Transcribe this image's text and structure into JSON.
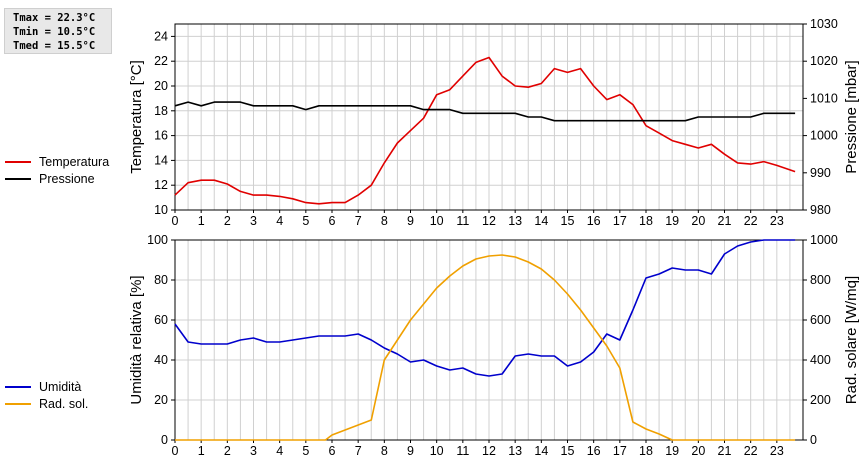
{
  "stats": {
    "tmax": "Tmax = 22.3°C",
    "tmin": "Tmin = 10.5°C",
    "tmed": "Tmed = 15.5°C"
  },
  "colors": {
    "temperature": "#e00000",
    "pressure": "#000000",
    "humidity": "#0000cc",
    "solar": "#f0a000",
    "grid": "#d0d0d0"
  },
  "chart_data": [
    {
      "type": "line",
      "ylabel": "Temperatura [°C]",
      "y2label": "Pressione [mbar]",
      "ylim": [
        10,
        25
      ],
      "yticks": [
        10,
        12,
        14,
        16,
        18,
        20,
        22,
        24
      ],
      "y2lim": [
        980,
        1030
      ],
      "y2ticks": [
        980,
        990,
        1000,
        1010,
        1020,
        1030
      ],
      "xlim": [
        0,
        24
      ],
      "xticks": [
        "0",
        "1",
        "2",
        "3",
        "4",
        "5",
        "6",
        "7",
        "8",
        "9",
        "10",
        "11",
        "12",
        "13",
        "14",
        "15",
        "16",
        "17",
        "18",
        "19",
        "20",
        "21",
        "22",
        "23"
      ],
      "grid": true,
      "legend_position": "left",
      "series": [
        {
          "name": "Temperatura",
          "axis": "left",
          "x": [
            0,
            0.5,
            1,
            1.5,
            2,
            2.5,
            3,
            3.5,
            4,
            4.5,
            5,
            5.5,
            6,
            6.5,
            7,
            7.5,
            8,
            8.5,
            9,
            9.5,
            10,
            10.5,
            11,
            11.5,
            12,
            12.5,
            13,
            13.5,
            14,
            14.5,
            15,
            15.5,
            16,
            16.5,
            17,
            17.5,
            18,
            18.5,
            19,
            19.5,
            20,
            20.5,
            21,
            21.5,
            22,
            22.5,
            23,
            23.7
          ],
          "values": [
            11.2,
            12.2,
            12.4,
            12.4,
            12.1,
            11.5,
            11.2,
            11.2,
            11.1,
            10.9,
            10.6,
            10.5,
            10.6,
            10.6,
            11.2,
            12.0,
            13.8,
            15.4,
            16.4,
            17.4,
            19.3,
            19.7,
            20.8,
            21.9,
            22.3,
            20.8,
            20.0,
            19.9,
            20.2,
            21.4,
            21.1,
            21.4,
            20.0,
            18.9,
            19.3,
            18.5,
            16.8,
            16.2,
            15.6,
            15.3,
            15.0,
            15.3,
            14.5,
            13.8,
            13.7,
            13.9,
            13.6,
            13.1
          ]
        },
        {
          "name": "Pressione",
          "axis": "right",
          "x": [
            0,
            0.5,
            1,
            1.5,
            2,
            2.5,
            3,
            3.5,
            4,
            4.5,
            5,
            5.5,
            6,
            6.5,
            7,
            7.5,
            8,
            8.5,
            9,
            9.5,
            10,
            10.5,
            11,
            11.5,
            12,
            12.5,
            13,
            13.5,
            14,
            14.5,
            15,
            15.5,
            16,
            16.5,
            17,
            17.5,
            18,
            18.5,
            19,
            19.5,
            20,
            20.5,
            21,
            21.5,
            22,
            22.5,
            23,
            23.7
          ],
          "values": [
            1008,
            1009,
            1008,
            1009,
            1009,
            1009,
            1008,
            1008,
            1008,
            1008,
            1007,
            1008,
            1008,
            1008,
            1008,
            1008,
            1008,
            1008,
            1008,
            1007,
            1007,
            1007,
            1006,
            1006,
            1006,
            1006,
            1006,
            1005,
            1005,
            1004,
            1004,
            1004,
            1004,
            1004,
            1004,
            1004,
            1004,
            1004,
            1004,
            1004,
            1005,
            1005,
            1005,
            1005,
            1005,
            1006,
            1006,
            1006
          ]
        }
      ]
    },
    {
      "type": "line",
      "ylabel": "Umidità relativa [%]",
      "y2label": "Rad. solare [W/mq]",
      "ylim": [
        0,
        100
      ],
      "yticks": [
        0,
        20,
        40,
        60,
        80,
        100
      ],
      "y2lim": [
        0,
        1000
      ],
      "y2ticks": [
        0,
        200,
        400,
        600,
        800,
        1000
      ],
      "xlim": [
        0,
        24
      ],
      "xticks": [
        "0",
        "1",
        "2",
        "3",
        "4",
        "5",
        "6",
        "7",
        "8",
        "9",
        "10",
        "11",
        "12",
        "13",
        "14",
        "15",
        "16",
        "17",
        "18",
        "19",
        "20",
        "21",
        "22",
        "23"
      ],
      "grid": true,
      "legend_position": "left",
      "series": [
        {
          "name": "Umidità",
          "axis": "left",
          "x": [
            0,
            0.5,
            1,
            1.5,
            2,
            2.5,
            3,
            3.5,
            4,
            4.5,
            5,
            5.5,
            6,
            6.5,
            7,
            7.5,
            8,
            8.5,
            9,
            9.5,
            10,
            10.5,
            11,
            11.5,
            12,
            12.5,
            13,
            13.5,
            14,
            14.5,
            15,
            15.5,
            16,
            16.5,
            17,
            17.5,
            18,
            18.5,
            19,
            19.5,
            20,
            20.5,
            21,
            21.5,
            22,
            22.5,
            23,
            23.7
          ],
          "values": [
            58,
            49,
            48,
            48,
            48,
            50,
            51,
            49,
            49,
            50,
            51,
            52,
            52,
            52,
            53,
            50,
            46,
            43,
            39,
            40,
            37,
            35,
            36,
            33,
            32,
            33,
            42,
            43,
            42,
            42,
            37,
            39,
            44,
            53,
            50,
            65,
            81,
            83,
            86,
            85,
            85,
            83,
            93,
            97,
            99,
            100,
            100,
            100
          ]
        },
        {
          "name": "Rad. sol.",
          "axis": "right",
          "x": [
            0,
            1,
            2,
            3,
            4,
            5,
            5.5,
            5.75,
            6,
            6.5,
            7,
            7.5,
            8,
            8.5,
            9,
            9.5,
            10,
            10.5,
            11,
            11.5,
            12,
            12.5,
            13,
            13.5,
            14,
            14.5,
            15,
            15.5,
            16,
            16.5,
            17,
            17.5,
            18,
            18.5,
            19,
            20,
            21,
            22,
            23,
            23.7
          ],
          "values": [
            0,
            0,
            0,
            0,
            0,
            0,
            0,
            0,
            25,
            50,
            75,
            100,
            400,
            500,
            600,
            680,
            760,
            820,
            870,
            905,
            920,
            925,
            915,
            890,
            855,
            800,
            730,
            650,
            560,
            470,
            360,
            90,
            55,
            30,
            0,
            0,
            0,
            0,
            0,
            0
          ]
        }
      ]
    }
  ]
}
